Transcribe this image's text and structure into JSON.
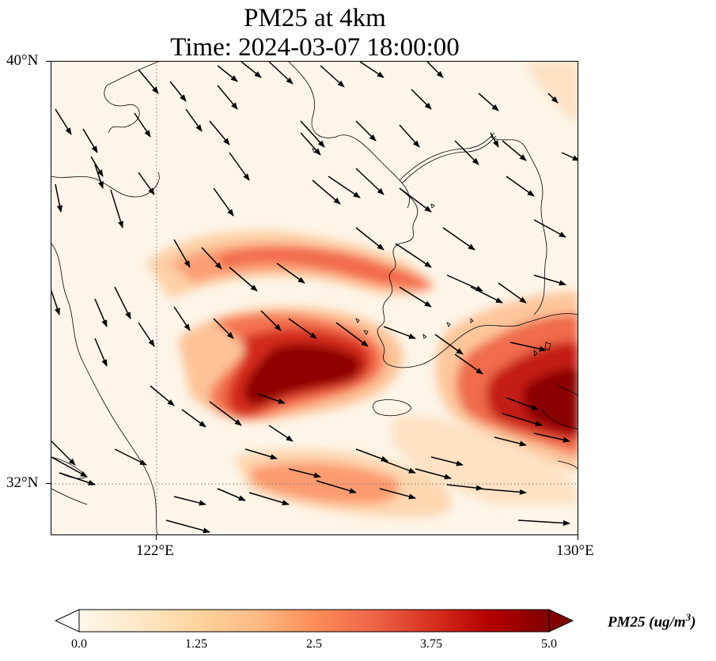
{
  "title": {
    "line1": "PM25 at 4km",
    "line2": "Time: 2024-03-07 18:00:00"
  },
  "map": {
    "lon_range": [
      120,
      130
    ],
    "lat_range": [
      31,
      40
    ],
    "lat_ticks": [
      {
        "value": 40,
        "label": "40°N"
      },
      {
        "value": 32,
        "label": "32°N"
      }
    ],
    "lon_ticks": [
      {
        "value": 122,
        "label": "122°E"
      },
      {
        "value": 130,
        "label": "130°E"
      }
    ],
    "gridlines": {
      "lon": [
        122
      ],
      "lat": [
        32
      ],
      "style": "dotted"
    },
    "wind_vectors": "southeasterly-to-easterly flow arrows across domain"
  },
  "colorbar": {
    "colormap": "OrRd",
    "min": 0.0,
    "max": 5.0,
    "extend": "both",
    "ticks": [
      "0.0",
      "1.25",
      "2.5",
      "3.75",
      "5.0"
    ],
    "label": "PM25 (ug/m",
    "label_sup": "3",
    "label_end": ")",
    "colors": [
      "#fff7ec",
      "#fee8c8",
      "#fdd49e",
      "#fdbb84",
      "#fc8d59",
      "#ef6548",
      "#d7301f",
      "#b30000",
      "#7f0000"
    ]
  }
}
